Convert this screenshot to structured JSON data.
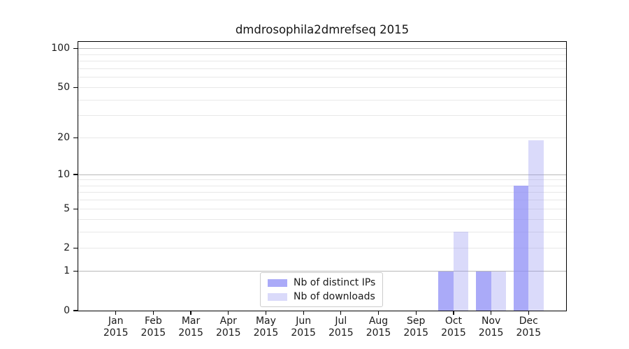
{
  "chart_data": {
    "type": "bar",
    "title": "dmdrosophila2dmrefseq 2015",
    "xlabel": "",
    "ylabel": "",
    "categories": [
      "Jan 2015",
      "Feb 2015",
      "Mar 2015",
      "Apr 2015",
      "May 2015",
      "Jun 2015",
      "Jul 2015",
      "Aug 2015",
      "Sep 2015",
      "Oct 2015",
      "Nov 2015",
      "Dec 2015"
    ],
    "x_tick_labels": [
      [
        "Jan",
        "2015"
      ],
      [
        "Feb",
        "2015"
      ],
      [
        "Mar",
        "2015"
      ],
      [
        "Apr",
        "2015"
      ],
      [
        "May",
        "2015"
      ],
      [
        "Jun",
        "2015"
      ],
      [
        "Jul",
        "2015"
      ],
      [
        "Aug",
        "2015"
      ],
      [
        "Sep",
        "2015"
      ],
      [
        "Oct",
        "2015"
      ],
      [
        "Nov",
        "2015"
      ],
      [
        "Dec",
        "2015"
      ]
    ],
    "series": [
      {
        "name": "Nb of distinct IPs",
        "color": "rgba(141,141,246,0.75)",
        "values": [
          0,
          0,
          0,
          0,
          0,
          0,
          0,
          0,
          0,
          1,
          1,
          8
        ]
      },
      {
        "name": "Nb of downloads",
        "color": "rgba(141,141,240,0.32)",
        "values": [
          0,
          0,
          0,
          0,
          0,
          0,
          0,
          0,
          0,
          3,
          1,
          19
        ]
      }
    ],
    "y_axis": {
      "scale": "log1p",
      "ticks": [
        0,
        1,
        2,
        5,
        10,
        20,
        50,
        100
      ],
      "major_grid": [
        1,
        10,
        100
      ],
      "minor_grid": [
        2,
        3,
        4,
        5,
        6,
        7,
        8,
        9,
        20,
        30,
        40,
        50,
        60,
        70,
        80,
        90
      ]
    },
    "ylim": [
      0,
      113
    ],
    "xlim": [
      -1,
      12
    ],
    "bar_width": 0.4,
    "grid": "on",
    "legend": {
      "position": "lower center"
    },
    "colors": {
      "major_grid": "#b8b8b8",
      "minor_grid": "#e8e8e8",
      "axis": "#000000",
      "text": "#1a1a1a"
    }
  }
}
